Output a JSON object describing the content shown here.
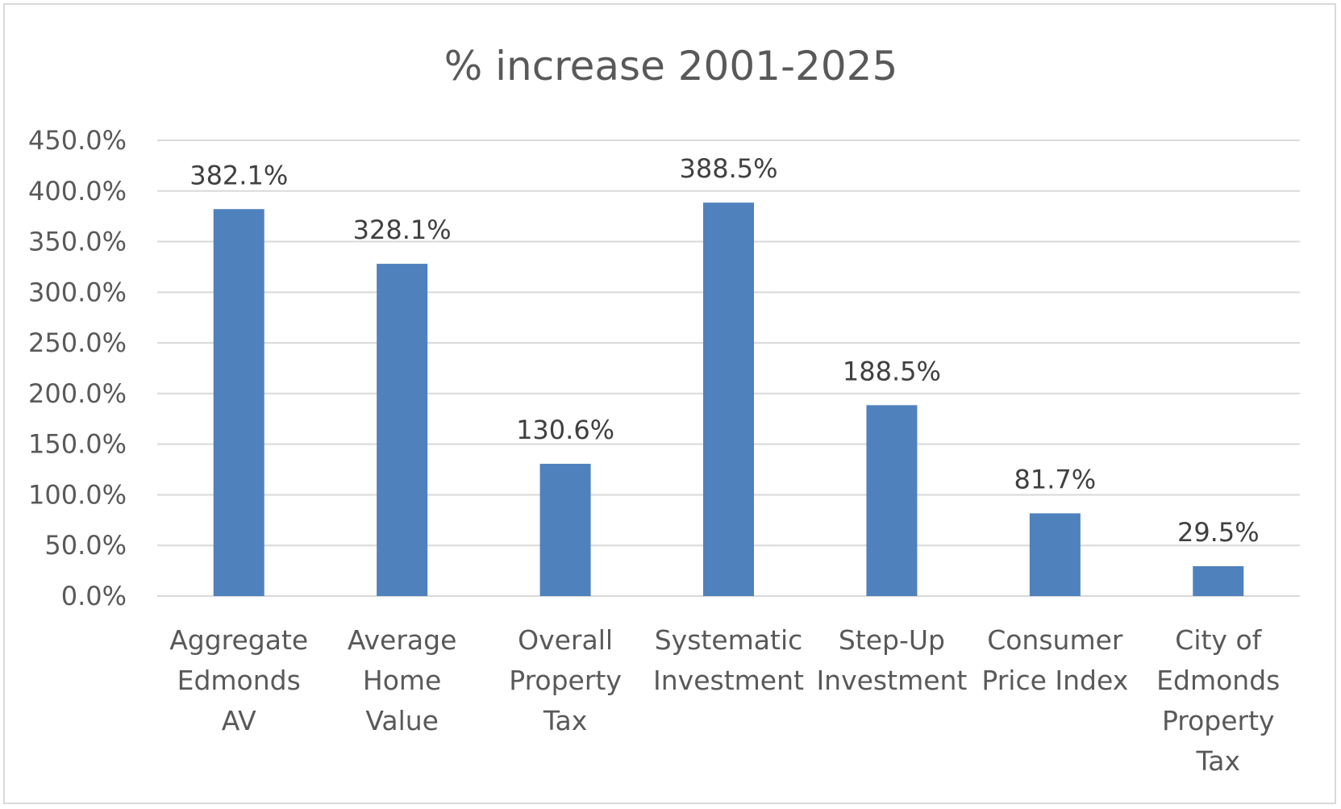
{
  "chart_data": {
    "type": "bar",
    "title": "% increase 2001-2025",
    "xlabel": "",
    "ylabel": "",
    "categories": [
      [
        "Aggregate",
        "Edmonds",
        "AV"
      ],
      [
        "Average",
        "Home",
        "Value"
      ],
      [
        "Overall",
        "Property",
        "Tax"
      ],
      [
        "Systematic",
        "Investment"
      ],
      [
        "Step-Up",
        "Investment"
      ],
      [
        "Consumer",
        "Price Index"
      ],
      [
        "City of",
        "Edmonds",
        "Property",
        "Tax"
      ]
    ],
    "values": [
      382.1,
      328.1,
      130.6,
      388.5,
      188.5,
      81.7,
      29.5
    ],
    "data_labels": [
      "382.1%",
      "328.1%",
      "130.6%",
      "388.5%",
      "188.5%",
      "81.7%",
      "29.5%"
    ],
    "ylim": [
      0,
      450
    ],
    "yticks": [
      0,
      50,
      100,
      150,
      200,
      250,
      300,
      350,
      400,
      450
    ],
    "ytick_labels": [
      "0.0%",
      "50.0%",
      "100.0%",
      "150.0%",
      "200.0%",
      "250.0%",
      "300.0%",
      "350.0%",
      "400.0%",
      "450.0%"
    ],
    "grid": true,
    "legend": "none",
    "bar_color": "#4f81bd",
    "grid_color": "#d9d9d9"
  }
}
